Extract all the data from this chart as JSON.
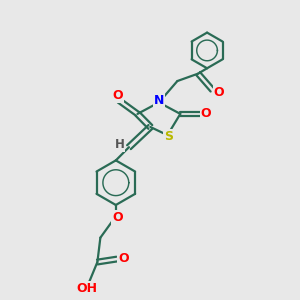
{
  "bg_color": "#e8e8e8",
  "bond_color": "#2a6b55",
  "bond_width": 1.6,
  "atom_colors": {
    "N": "#0000ff",
    "O": "#ff0000",
    "S": "#b8b800",
    "H_label": "#555555",
    "C": "#2a6b55"
  },
  "font_size_atom": 8.5,
  "fig_size": [
    3.0,
    3.0
  ],
  "dpi": 100
}
